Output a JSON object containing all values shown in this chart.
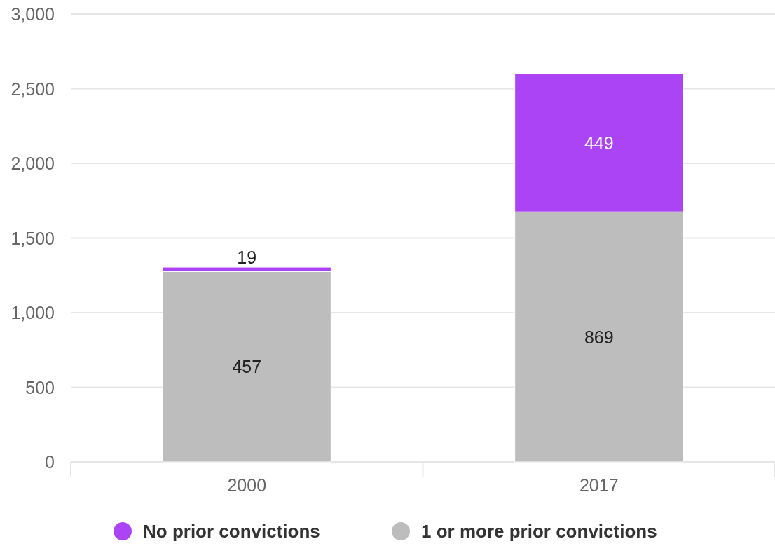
{
  "chart_data": {
    "type": "bar",
    "stacked": true,
    "categories": [
      "2000",
      "2017"
    ],
    "series": [
      {
        "name": "1 or more prior convictions",
        "color": "#bdbdbd",
        "values": [
          1275,
          1675
        ]
      },
      {
        "name": "No prior convictions",
        "color": "#ab44f5",
        "values": [
          30,
          925
        ]
      }
    ],
    "annotations": [
      "457",
      "869",
      "19",
      "449"
    ],
    "ylim": [
      0,
      3000
    ],
    "yticks": [
      0,
      500,
      {
        "value": 1000,
        "label": "1,000"
      },
      {
        "value": 1500,
        "label": "1,500"
      },
      {
        "value": 2000,
        "label": "2,000"
      },
      {
        "value": 2500,
        "label": "2,500"
      },
      {
        "value": 3000,
        "label": "3,000"
      }
    ],
    "grid": "y",
    "legend": "bottom"
  }
}
